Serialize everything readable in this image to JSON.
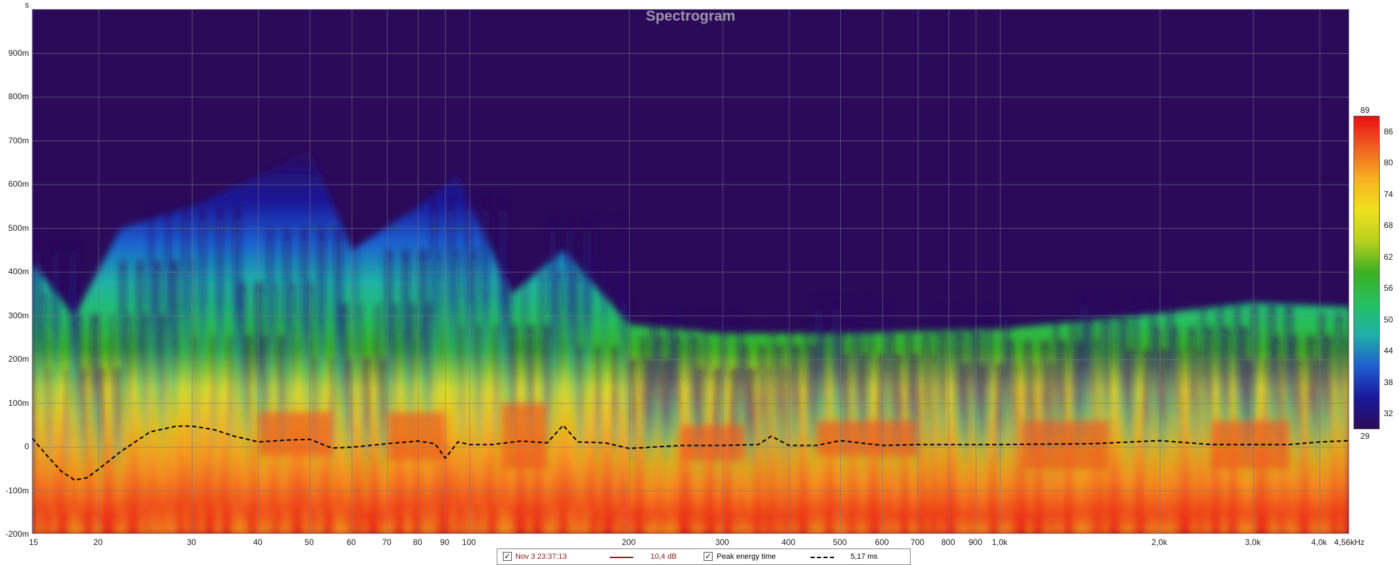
{
  "chart_data": {
    "type": "heatmap",
    "title": "Spectrogram",
    "y_unit": "s",
    "x_scale": "log",
    "xlim": [
      15,
      4560
    ],
    "ylim": [
      -0.2,
      1.0
    ],
    "x_ticks": [
      {
        "v": 15,
        "label": "15"
      },
      {
        "v": 20,
        "label": "20"
      },
      {
        "v": 30,
        "label": "30"
      },
      {
        "v": 40,
        "label": "40"
      },
      {
        "v": 50,
        "label": "50"
      },
      {
        "v": 60,
        "label": "60"
      },
      {
        "v": 70,
        "label": "70"
      },
      {
        "v": 80,
        "label": "80"
      },
      {
        "v": 90,
        "label": "90"
      },
      {
        "v": 100,
        "label": "100"
      },
      {
        "v": 200,
        "label": "200"
      },
      {
        "v": 300,
        "label": "300"
      },
      {
        "v": 400,
        "label": "400"
      },
      {
        "v": 500,
        "label": "500"
      },
      {
        "v": 600,
        "label": "600"
      },
      {
        "v": 700,
        "label": "700"
      },
      {
        "v": 800,
        "label": "800"
      },
      {
        "v": 900,
        "label": "900"
      },
      {
        "v": 1000,
        "label": "1,0k"
      },
      {
        "v": 2000,
        "label": "2,0k"
      },
      {
        "v": 3000,
        "label": "3,0k"
      },
      {
        "v": 4000,
        "label": "4,0k"
      },
      {
        "v": 4560,
        "label": "4,56kHz"
      }
    ],
    "y_ticks": [
      {
        "v": 0.9,
        "label": "900m"
      },
      {
        "v": 0.8,
        "label": "800m"
      },
      {
        "v": 0.7,
        "label": "700m"
      },
      {
        "v": 0.6,
        "label": "600m"
      },
      {
        "v": 0.5,
        "label": "500m"
      },
      {
        "v": 0.4,
        "label": "400m"
      },
      {
        "v": 0.3,
        "label": "300m"
      },
      {
        "v": 0.2,
        "label": "200m"
      },
      {
        "v": 0.1,
        "label": "100m"
      },
      {
        "v": 0.0,
        "label": "0"
      },
      {
        "v": -0.1,
        "label": "-100m"
      },
      {
        "v": -0.2,
        "label": "-200m"
      }
    ],
    "grid": true,
    "color_scale": {
      "min": 29,
      "max": 89,
      "min_label": "29",
      "max_label": "89",
      "ticks": [
        "86",
        "80",
        "74",
        "68",
        "62",
        "56",
        "50",
        "44",
        "38",
        "32"
      ],
      "tick_values": [
        86,
        80,
        74,
        68,
        62,
        56,
        50,
        44,
        38,
        32
      ],
      "colors": [
        "#2b0a5a",
        "#1a1a9c",
        "#1f5fd0",
        "#1fb0a8",
        "#25c060",
        "#3ab020",
        "#b8d020",
        "#f0e020",
        "#f8b020",
        "#f06020",
        "#e81010"
      ]
    },
    "series": [
      {
        "name": "Peak energy time",
        "style": "dashed",
        "x": [
          15,
          16,
          17,
          18,
          19,
          20,
          22,
          25,
          28,
          30,
          33,
          36,
          40,
          45,
          50,
          55,
          60,
          70,
          80,
          86,
          90,
          95,
          100,
          110,
          125,
          140,
          150,
          160,
          180,
          200,
          250,
          300,
          350,
          370,
          400,
          450,
          500,
          600,
          700,
          800,
          1000,
          1500,
          2000,
          2500,
          3000,
          3500,
          4000,
          4560
        ],
        "y": [
          0.02,
          -0.02,
          -0.055,
          -0.075,
          -0.07,
          -0.05,
          -0.01,
          0.035,
          0.048,
          0.048,
          0.04,
          0.025,
          0.012,
          0.016,
          0.018,
          -0.002,
          0.0,
          0.008,
          0.014,
          0.008,
          -0.025,
          0.012,
          0.006,
          0.006,
          0.014,
          0.01,
          0.05,
          0.012,
          0.01,
          -0.003,
          0.004,
          0.004,
          0.006,
          0.025,
          0.004,
          0.004,
          0.015,
          0.004,
          0.006,
          0.006,
          0.006,
          0.008,
          0.015,
          0.006,
          0.006,
          0.006,
          0.012,
          0.015
        ]
      }
    ]
  },
  "legend": {
    "entries": [
      {
        "label": "Nov 3 23:37:13",
        "value": "10,4 dB",
        "color": "#8b1a1a",
        "checked": true
      },
      {
        "label": "Peak energy time",
        "value": "5,17 ms",
        "color": "#000000",
        "checked": true
      }
    ]
  }
}
